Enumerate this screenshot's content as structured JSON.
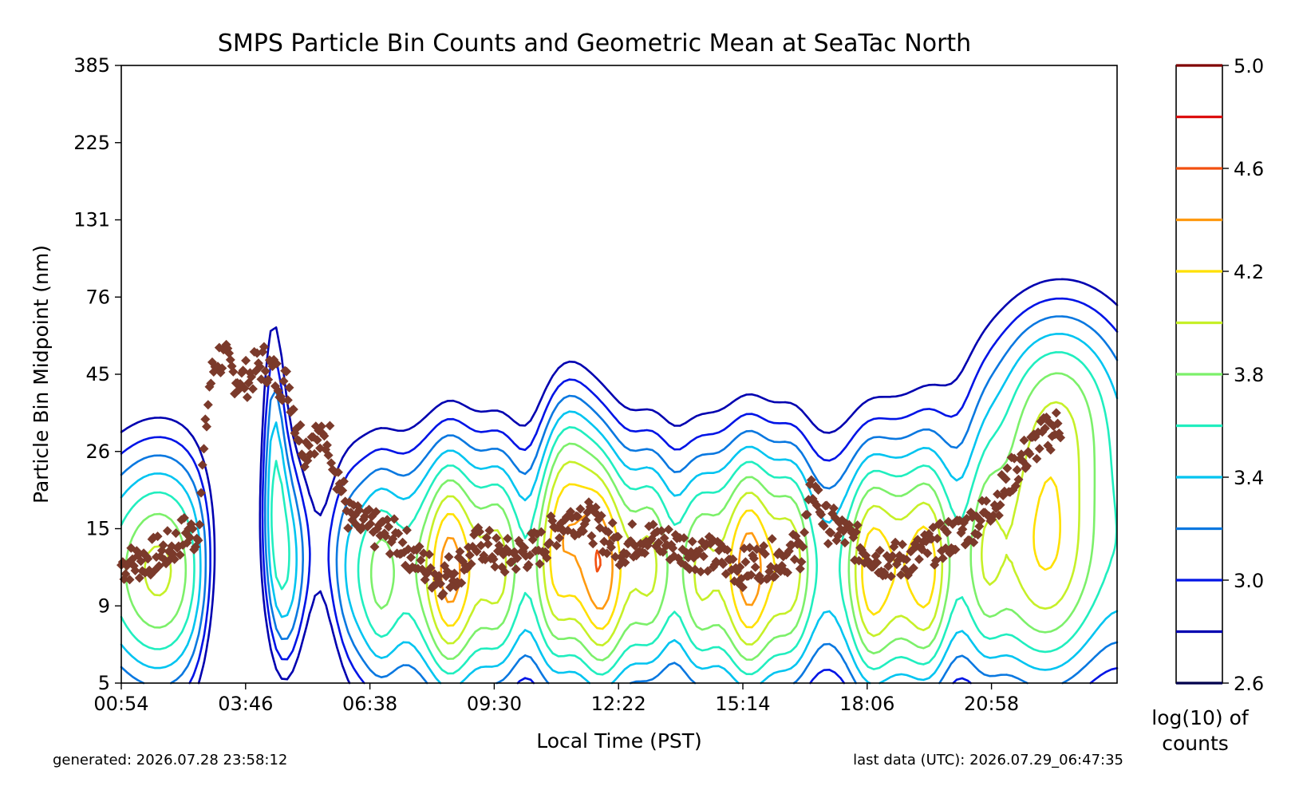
{
  "chart_data": {
    "type": "contour",
    "title": "SMPS Particle Bin Counts and Geometric Mean at SeaTac North",
    "xlabel": "Local Time (PST)",
    "ylabel": "Particle Bin Midpoint (nm)",
    "x_tick_labels": [
      "00:54",
      "03:46",
      "06:38",
      "09:30",
      "12:22",
      "15:14",
      "18:06",
      "20:58"
    ],
    "y_tick_labels": [
      "5",
      "9",
      "15",
      "26",
      "45",
      "76",
      "131",
      "225",
      "385"
    ],
    "y_scale": "log",
    "ylim": [
      5,
      385
    ],
    "colorbar": {
      "label_line1": "log(10) of",
      "label_line2": "counts",
      "tick_labels": [
        "2.6",
        "3.0",
        "3.4",
        "3.8",
        "4.2",
        "4.6",
        "5.0"
      ],
      "levels": [
        2.6,
        2.8,
        3.0,
        3.2,
        3.4,
        3.6,
        3.8,
        4.0,
        4.2,
        4.4,
        4.6,
        4.8,
        5.0
      ],
      "colors": [
        "#00004c",
        "#0000b0",
        "#0014e6",
        "#0a78e0",
        "#00c4f0",
        "#20eebf",
        "#7cf06a",
        "#c6f028",
        "#ffe000",
        "#ff9a10",
        "#f25010",
        "#dc0f0f",
        "#800000"
      ]
    },
    "geometric_mean": {
      "name": "geometric mean",
      "marker": "diamond",
      "color": "#7b3a2b",
      "hours_after_start": [
        0.0,
        0.5,
        1.0,
        1.3,
        1.6,
        1.9,
        2.2,
        2.4,
        2.6,
        2.8,
        3.0,
        3.2,
        3.4,
        3.6,
        3.8,
        4.0,
        4.2,
        4.4,
        4.6,
        4.8,
        5.0,
        5.2,
        5.4,
        5.7,
        6.0,
        6.5,
        7.0,
        7.5,
        8.0,
        8.5,
        9.0,
        9.5,
        10.0,
        10.5,
        11.0,
        11.5,
        12.0,
        12.5,
        13.0,
        13.5,
        14.0,
        14.5,
        15.0,
        15.5,
        16.0,
        16.5,
        17.0,
        17.3,
        17.6,
        18.0,
        18.5,
        19.0,
        19.5,
        20.0,
        20.5,
        21.0,
        21.5,
        22.0,
        22.5,
        23.0,
        23.5
      ],
      "diameter_nm": [
        11.5,
        11.8,
        12.5,
        13.0,
        14.5,
        14.0,
        40.0,
        50.0,
        48.0,
        44.0,
        42.0,
        43.0,
        46.0,
        48.0,
        44.0,
        42.0,
        40.0,
        30.0,
        26.0,
        29.0,
        27.0,
        28.0,
        22.0,
        16.0,
        15.0,
        14.5,
        13.5,
        11.5,
        10.5,
        11.5,
        13.5,
        12.0,
        12.5,
        13.0,
        15.5,
        16.5,
        14.5,
        13.0,
        14.0,
        13.5,
        13.0,
        12.5,
        12.0,
        11.2,
        11.8,
        12.2,
        12.8,
        20.0,
        15.5,
        14.5,
        13.0,
        12.0,
        11.8,
        12.5,
        13.5,
        14.5,
        16.0,
        19.0,
        24.0,
        28.0,
        31.0
      ]
    }
  },
  "footer": {
    "generated": "generated: 2026.07.28 23:58:12",
    "last_data": "last data (UTC): 2026.07.29_06:47:35"
  }
}
